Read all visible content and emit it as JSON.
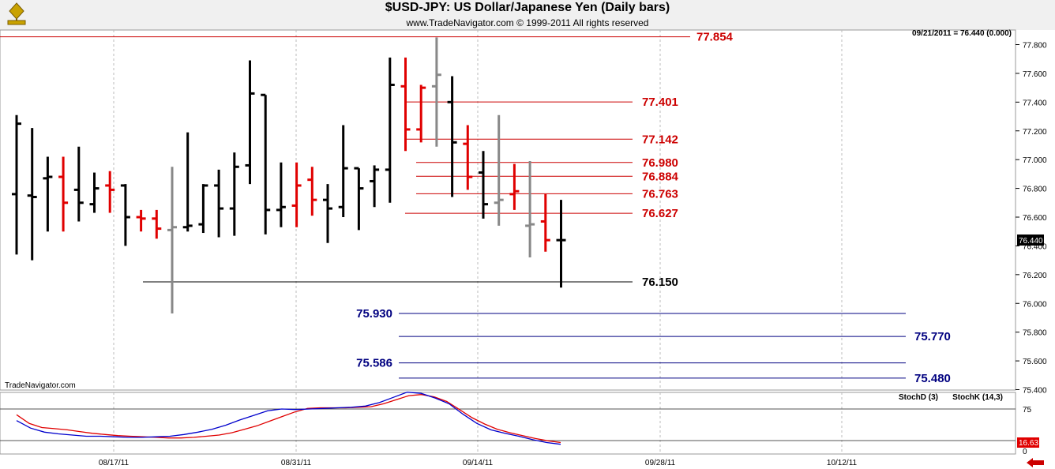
{
  "header": {
    "title": "$USD-JPY:  US Dollar/Japanese Yen  (Daily bars)",
    "subtitle": "www.TradeNavigator.com © 1999-2011 All rights reserved",
    "readout": "09/21/2011 = 76.440 (0.000)",
    "watermark": "TradeNavigator.com"
  },
  "colors": {
    "up": "#000000",
    "down": "#e00000",
    "neutral": "#888888",
    "resistance": "#cc0000",
    "support": "#000080",
    "stochD": "#e00000",
    "stochK": "#0000cc"
  },
  "chart_data": [
    {
      "type": "ohlc",
      "title": "$USD-JPY:  US Dollar/Japanese Yen  (Daily bars)",
      "ylim": [
        75.38,
        77.93
      ],
      "y_ticks": [
        "77.800",
        "77.600",
        "77.400",
        "77.200",
        "77.000",
        "76.800",
        "76.600",
        "76.400",
        "76.200",
        "76.000",
        "75.800",
        "75.600",
        "75.400"
      ],
      "x_ticks": [
        "08/17/11",
        "08/31/11",
        "09/14/11",
        "09/28/11",
        "10/12/11"
      ],
      "last_price": "76.440",
      "bars": [
        {
          "o": 76.76,
          "h": 77.31,
          "l": 76.34,
          "c": 77.25,
          "color": "up"
        },
        {
          "o": 76.75,
          "h": 77.22,
          "l": 76.3,
          "c": 76.74,
          "color": "up"
        },
        {
          "o": 76.87,
          "h": 77.02,
          "l": 76.5,
          "c": 76.88,
          "color": "up"
        },
        {
          "o": 76.88,
          "h": 77.02,
          "l": 76.5,
          "c": 76.7,
          "color": "down"
        },
        {
          "o": 76.79,
          "h": 77.09,
          "l": 76.57,
          "c": 76.7,
          "color": "up"
        },
        {
          "o": 76.69,
          "h": 76.91,
          "l": 76.63,
          "c": 76.8,
          "color": "up"
        },
        {
          "o": 76.82,
          "h": 76.92,
          "l": 76.63,
          "c": 76.79,
          "color": "down"
        },
        {
          "o": 76.82,
          "h": 76.83,
          "l": 76.4,
          "c": 76.6,
          "color": "up"
        },
        {
          "o": 76.6,
          "h": 76.65,
          "l": 76.5,
          "c": 76.59,
          "color": "down"
        },
        {
          "o": 76.59,
          "h": 76.65,
          "l": 76.45,
          "c": 76.52,
          "color": "down"
        },
        {
          "o": 76.51,
          "h": 76.95,
          "l": 75.93,
          "c": 76.53,
          "color": "neutral"
        },
        {
          "o": 76.53,
          "h": 77.19,
          "l": 76.5,
          "c": 76.54,
          "color": "up"
        },
        {
          "o": 76.55,
          "h": 76.83,
          "l": 76.49,
          "c": 76.82,
          "color": "up"
        },
        {
          "o": 76.82,
          "h": 76.93,
          "l": 76.46,
          "c": 76.66,
          "color": "up"
        },
        {
          "o": 76.66,
          "h": 77.05,
          "l": 76.47,
          "c": 76.95,
          "color": "up"
        },
        {
          "o": 76.96,
          "h": 77.69,
          "l": 76.83,
          "c": 77.46,
          "color": "up"
        },
        {
          "o": 77.45,
          "h": 77.45,
          "l": 76.48,
          "c": 76.65,
          "color": "up"
        },
        {
          "o": 76.65,
          "h": 76.98,
          "l": 76.53,
          "c": 76.67,
          "color": "up"
        },
        {
          "o": 76.68,
          "h": 76.98,
          "l": 76.53,
          "c": 76.82,
          "color": "down"
        },
        {
          "o": 76.86,
          "h": 76.95,
          "l": 76.61,
          "c": 76.72,
          "color": "down"
        },
        {
          "o": 76.72,
          "h": 76.83,
          "l": 76.42,
          "c": 76.66,
          "color": "up"
        },
        {
          "o": 76.67,
          "h": 77.24,
          "l": 76.6,
          "c": 76.94,
          "color": "up"
        },
        {
          "o": 76.94,
          "h": 76.94,
          "l": 76.51,
          "c": 76.8,
          "color": "up"
        },
        {
          "o": 76.85,
          "h": 76.96,
          "l": 76.67,
          "c": 76.93,
          "color": "up"
        },
        {
          "o": 76.93,
          "h": 77.71,
          "l": 76.7,
          "c": 77.52,
          "color": "up"
        },
        {
          "o": 77.51,
          "h": 77.71,
          "l": 77.06,
          "c": 77.21,
          "color": "down"
        },
        {
          "o": 77.21,
          "h": 77.52,
          "l": 77.12,
          "c": 77.5,
          "color": "down"
        },
        {
          "o": 77.51,
          "h": 77.85,
          "l": 77.09,
          "c": 77.59,
          "color": "neutral"
        },
        {
          "o": 77.4,
          "h": 77.58,
          "l": 76.74,
          "c": 77.12,
          "color": "up"
        },
        {
          "o": 77.11,
          "h": 77.24,
          "l": 76.79,
          "c": 76.88,
          "color": "down"
        },
        {
          "o": 76.91,
          "h": 77.06,
          "l": 76.59,
          "c": 76.69,
          "color": "up"
        },
        {
          "o": 76.7,
          "h": 77.31,
          "l": 76.54,
          "c": 76.72,
          "color": "neutral"
        },
        {
          "o": 76.76,
          "h": 76.97,
          "l": 76.65,
          "c": 76.78,
          "color": "down"
        },
        {
          "o": 76.54,
          "h": 76.99,
          "l": 76.32,
          "c": 76.55,
          "color": "neutral"
        },
        {
          "o": 76.57,
          "h": 76.76,
          "l": 76.36,
          "c": 76.44,
          "color": "down"
        },
        {
          "o": 76.44,
          "h": 76.72,
          "l": 76.11,
          "c": 76.44,
          "color": "up"
        }
      ],
      "levels": [
        {
          "label": "77.854",
          "value": 77.854,
          "color": "resistance"
        },
        {
          "label": "77.401",
          "value": 77.401,
          "color": "resistance"
        },
        {
          "label": "77.142",
          "value": 77.142,
          "color": "resistance"
        },
        {
          "label": "76.980",
          "value": 76.98,
          "color": "resistance"
        },
        {
          "label": "76.884",
          "value": 76.884,
          "color": "resistance"
        },
        {
          "label": "76.763",
          "value": 76.763,
          "color": "resistance"
        },
        {
          "label": "76.627",
          "value": 76.627,
          "color": "resistance"
        },
        {
          "label": "76.150",
          "value": 76.15,
          "color": "up"
        },
        {
          "label": "75.930",
          "value": 75.93,
          "color": "support"
        },
        {
          "label": "75.770",
          "value": 75.77,
          "color": "support"
        },
        {
          "label": "75.586",
          "value": 75.586,
          "color": "support"
        },
        {
          "label": "75.480",
          "value": 75.48,
          "color": "support"
        }
      ]
    },
    {
      "type": "line",
      "series": [
        {
          "name": "StochD (3)",
          "color": "stochD",
          "values": [
            65,
            50,
            43,
            41,
            39,
            36,
            33,
            31,
            29,
            28,
            27,
            26,
            25,
            25,
            26,
            28,
            30,
            34,
            40,
            46,
            54,
            62,
            70,
            76,
            77,
            77,
            77,
            78,
            79,
            84,
            91,
            98,
            100,
            96,
            88,
            74,
            60,
            49,
            40,
            34,
            29,
            24,
            20,
            17
          ]
        },
        {
          "name": "StochK (14,3)",
          "color": "stochK",
          "values": [
            55,
            42,
            35,
            32,
            30,
            28,
            28,
            27,
            26,
            26,
            27,
            28,
            31,
            35,
            40,
            47,
            56,
            64,
            72,
            75,
            74,
            75,
            76,
            77,
            78,
            80,
            86,
            95,
            104,
            102,
            94,
            84,
            66,
            50,
            39,
            33,
            28,
            22,
            17,
            14
          ]
        }
      ],
      "ylim": [
        0,
        100
      ],
      "y_ticks": [
        "75",
        "0"
      ],
      "last_value": "16.63"
    }
  ]
}
